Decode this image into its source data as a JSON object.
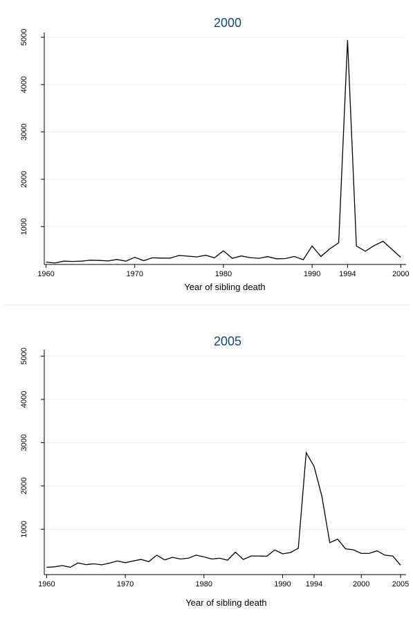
{
  "chart_data": [
    {
      "type": "line",
      "title": "2000",
      "xlabel": "Year of sibling death",
      "ylabel": "",
      "xlim": [
        1959.8,
        2000.6
      ],
      "ylim": [
        200,
        5100
      ],
      "xticks": [
        1960,
        1970,
        1980,
        1990,
        1994,
        2000
      ],
      "yticks": [
        1000,
        2000,
        3000,
        4000,
        5000
      ],
      "grid": true,
      "series": [
        {
          "x": [
            1960,
            1961,
            1962,
            1963,
            1964,
            1965,
            1966,
            1967,
            1968,
            1969,
            1970,
            1971,
            1972,
            1973,
            1974,
            1975,
            1976,
            1977,
            1978,
            1979,
            1980,
            1981,
            1982,
            1983,
            1984,
            1985,
            1986,
            1987,
            1988,
            1989,
            1990,
            1991,
            1992,
            1993,
            1994,
            1995,
            1996,
            1997,
            1998,
            1999,
            2000
          ],
          "values": [
            250,
            230,
            270,
            265,
            270,
            290,
            285,
            275,
            305,
            270,
            350,
            280,
            340,
            335,
            335,
            390,
            375,
            360,
            395,
            340,
            490,
            330,
            380,
            345,
            330,
            365,
            320,
            325,
            370,
            300,
            590,
            370,
            530,
            660,
            4940,
            590,
            480,
            600,
            690,
            520,
            350
          ]
        }
      ]
    },
    {
      "type": "line",
      "title": "2005",
      "xlabel": "Year of sibling death",
      "ylabel": "",
      "xlim": [
        1959.7,
        2005.7
      ],
      "ylim": [
        -50,
        5150
      ],
      "xticks": [
        1960,
        1970,
        1980,
        1990,
        1994,
        2000,
        2005
      ],
      "yticks": [
        1000,
        2000,
        3000,
        4000,
        5000
      ],
      "grid": true,
      "series": [
        {
          "x": [
            1960,
            1961,
            1962,
            1963,
            1964,
            1965,
            1966,
            1967,
            1968,
            1969,
            1970,
            1971,
            1972,
            1973,
            1974,
            1975,
            1976,
            1977,
            1978,
            1979,
            1980,
            1981,
            1982,
            1983,
            1984,
            1985,
            1986,
            1987,
            1988,
            1989,
            1990,
            1991,
            1992,
            1993,
            1994,
            1995,
            1996,
            1997,
            1998,
            1999,
            2000,
            2001,
            2002,
            2003,
            2004,
            2005
          ],
          "values": [
            120,
            130,
            160,
            120,
            220,
            180,
            200,
            175,
            215,
            265,
            225,
            265,
            300,
            250,
            400,
            290,
            350,
            310,
            330,
            400,
            360,
            310,
            330,
            285,
            470,
            300,
            380,
            380,
            375,
            520,
            430,
            460,
            560,
            2770,
            2450,
            1760,
            690,
            770,
            545,
            525,
            440,
            440,
            500,
            400,
            380,
            170
          ]
        }
      ]
    }
  ]
}
